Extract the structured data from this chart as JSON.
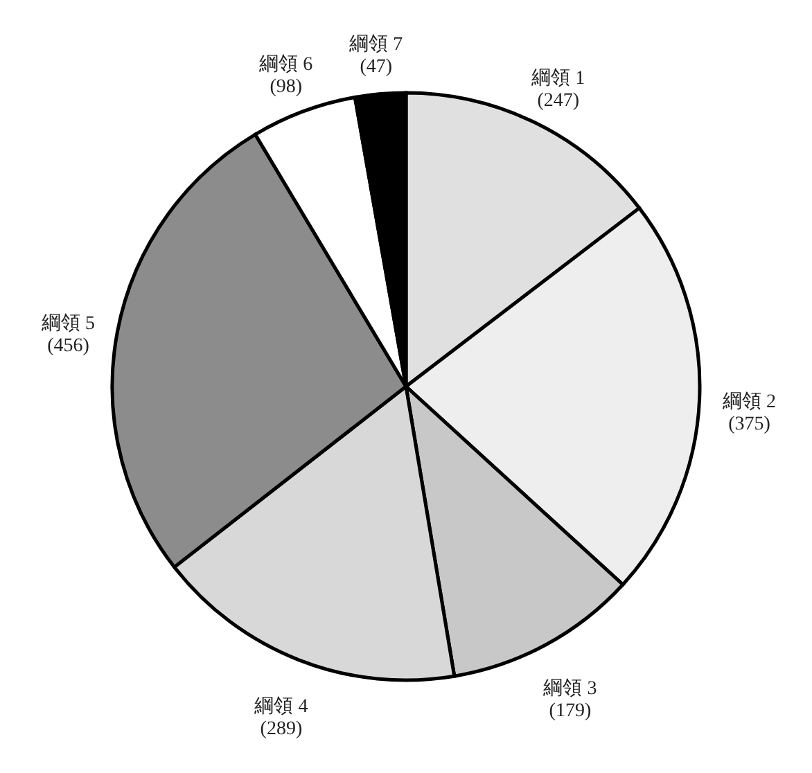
{
  "chart_data": {
    "type": "pie",
    "categories": [
      "綱領 1",
      "綱領 2",
      "綱領 3",
      "綱領 4",
      "綱領 5",
      "綱領 6",
      "綱領 7"
    ],
    "values": [
      247,
      375,
      179,
      289,
      456,
      98,
      47
    ],
    "value_labels": [
      "(247)",
      "(375)",
      "(179)",
      "(289)",
      "(456)",
      "(98)",
      "(47)"
    ],
    "colors": [
      "#e0e0e0",
      "#eeeeee",
      "#c8c8c8",
      "#d8d8d8",
      "#8c8c8c",
      "#ffffff",
      "#000000"
    ]
  }
}
